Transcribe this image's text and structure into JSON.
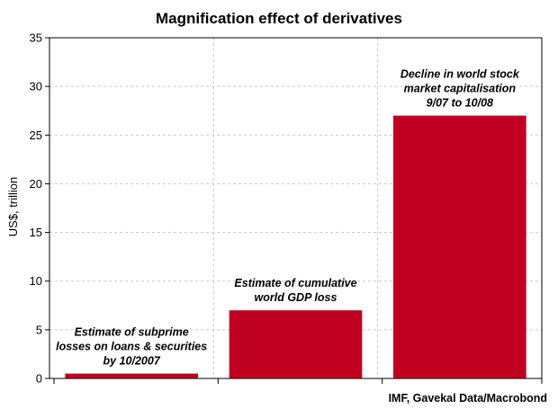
{
  "chart_data": {
    "type": "bar",
    "title": "Magnification effect of derivatives",
    "ylabel": "US$, trillion",
    "xlabel": "",
    "ylim": [
      0,
      35
    ],
    "yticks": [
      0,
      5,
      10,
      15,
      20,
      25,
      30,
      35
    ],
    "grid": true,
    "bar_color": "#c00020",
    "categories": [
      "Estimate of subprime losses on loans & securities by 10/2007",
      "Estimate of cumulative world GDP loss",
      "Decline in world stock market capitalisation 9/07 to 10/08"
    ],
    "annotation_lines": [
      [
        "Estimate of subprime",
        "losses on loans & securities",
        "by 10/2007"
      ],
      [
        "Estimate of cumulative",
        "world GDP loss"
      ],
      [
        "Decline in world stock",
        "market capitalisation",
        "9/07 to 10/08"
      ]
    ],
    "values": [
      0.5,
      7,
      27
    ],
    "source": "IMF, Gavekal Data/Macrobond"
  }
}
